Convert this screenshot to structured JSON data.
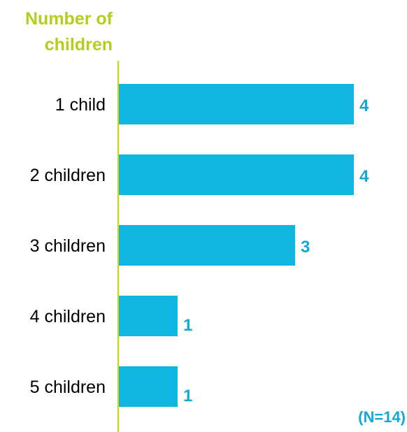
{
  "colors": {
    "bar": "#12B5E0",
    "axis_title": "#B5CE1E",
    "axis_line": "#C8D82A",
    "value_label": "#12A9D6",
    "category_label": "#000000",
    "note": "#12A9D6"
  },
  "chart_data": {
    "type": "bar",
    "orientation": "horizontal",
    "title": "",
    "ylabel": "Number of children",
    "ylabel_lines": [
      "Number of",
      "children"
    ],
    "xlabel": "",
    "categories": [
      "1 child",
      "2 children",
      "3 children",
      "4 children",
      "5 children"
    ],
    "values": [
      4,
      4,
      3,
      1,
      1
    ],
    "xlim": [
      0,
      4
    ],
    "grid": false,
    "legend": "none",
    "note": "(N=14)"
  }
}
